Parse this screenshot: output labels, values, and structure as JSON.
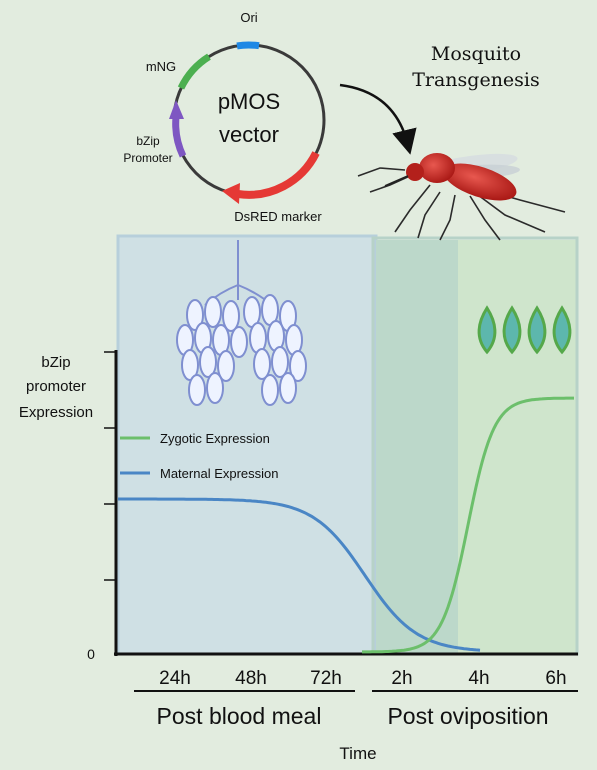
{
  "plasmid": {
    "name_line1": "pMOS",
    "name_line2": "vector",
    "labels": {
      "ori": "Ori",
      "mng": "mNG",
      "bzip_line1": "bZip",
      "bzip_line2": "Promoter",
      "dsred": "DsRED marker"
    },
    "colors": {
      "ori": "#1e88e5",
      "mng": "#4caf50",
      "bzip": "#7e57c2",
      "dsred": "#e53935"
    }
  },
  "transgenesis": {
    "line1": "Mosquito",
    "line2": "Transgenesis"
  },
  "chart_data": {
    "type": "line",
    "ylabel": [
      "bZip",
      "promoter",
      "Expression"
    ],
    "xlabel": "Time",
    "y_tick_label": "0",
    "x_ticks": [
      "24h",
      "48h",
      "72h",
      "2h",
      "4h",
      "6h"
    ],
    "phases": [
      "Post blood meal",
      "Post oviposition"
    ],
    "series": [
      {
        "name": "Zygotic Expression",
        "color": "#6cbf6b"
      },
      {
        "name": "Maternal Expression",
        "color": "#4a86c5"
      }
    ]
  }
}
